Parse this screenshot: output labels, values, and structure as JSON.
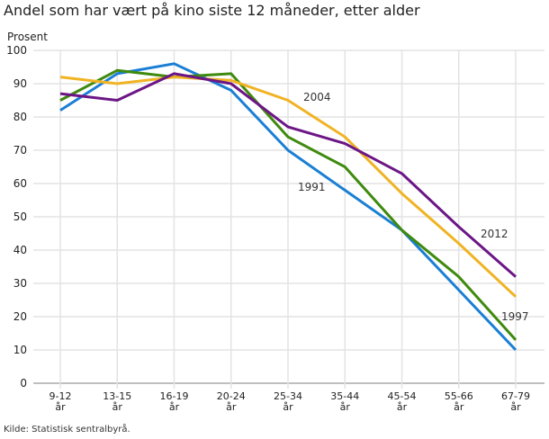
{
  "chart_data": {
    "type": "line",
    "title": "Andel som har vært på kino siste 12 måneder, etter alder",
    "ylabel": "Prosent",
    "xlabel": "",
    "ylim": [
      0,
      100
    ],
    "yticks": [
      0,
      10,
      20,
      30,
      40,
      50,
      60,
      70,
      80,
      90,
      100
    ],
    "categories": [
      [
        "9-12",
        "år"
      ],
      [
        "13-15",
        "år"
      ],
      [
        "16-19",
        "år"
      ],
      [
        "20-24",
        "år"
      ],
      [
        "25-34",
        "år"
      ],
      [
        "35-44",
        "år"
      ],
      [
        "45-54",
        "år"
      ],
      [
        "55-66",
        "år"
      ],
      [
        "67-79",
        "år"
      ]
    ],
    "series": [
      {
        "name": "1991",
        "color": "#1a7fd4",
        "values": [
          82,
          93,
          96,
          88,
          70,
          58,
          46,
          28,
          10
        ]
      },
      {
        "name": "1997",
        "color": "#3f8a0e",
        "values": [
          85,
          94,
          92,
          93,
          74,
          65,
          46,
          32,
          13
        ]
      },
      {
        "name": "2004",
        "color": "#f0b323",
        "values": [
          92,
          90,
          92,
          91,
          85,
          74,
          57,
          42,
          26
        ]
      },
      {
        "name": "2012",
        "color": "#6c1686",
        "values": [
          87,
          85,
          93,
          90,
          77,
          72,
          63,
          47,
          32
        ]
      }
    ],
    "annotations": [
      {
        "text": "2004",
        "series": "2004"
      },
      {
        "text": "1991",
        "series": "1991"
      },
      {
        "text": "2012",
        "series": "2012"
      },
      {
        "text": "1997",
        "series": "1997"
      }
    ],
    "grid": true,
    "source": "Kilde: Statistisk sentralbyrå."
  }
}
